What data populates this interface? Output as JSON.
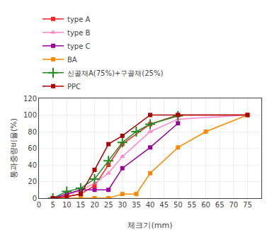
{
  "chart_data": {
    "type": "line",
    "xlabel": "체크기(mm)",
    "ylabel": "통과중량비율(%)",
    "xlim": [
      0,
      80
    ],
    "ylim": [
      0,
      120
    ],
    "xticks": [
      0,
      5,
      10,
      15,
      20,
      25,
      30,
      35,
      40,
      45,
      50,
      55,
      60,
      65,
      70,
      75
    ],
    "yticks": [
      0,
      20,
      40,
      60,
      80,
      100,
      120
    ],
    "grid": true,
    "legend": "upper left",
    "series": [
      {
        "name": "type A",
        "x": [
          5,
          10,
          15,
          20,
          25,
          30,
          40,
          50,
          75
        ],
        "values": [
          0,
          2,
          5,
          15,
          40,
          65,
          89,
          100,
          100
        ],
        "color": "#FF2222",
        "marker": "square",
        "line_style": "solid"
      },
      {
        "name": "type B",
        "x": [
          5,
          10,
          15,
          20,
          25,
          30,
          40,
          50,
          75
        ],
        "values": [
          0,
          4,
          9,
          18,
          30,
          50,
          80,
          95,
          100
        ],
        "color": "#FF88CC",
        "marker": "triangle",
        "line_style": "solid"
      },
      {
        "name": "type C",
        "x": [
          5,
          10,
          15,
          20,
          25,
          30,
          40,
          50
        ],
        "values": [
          0,
          5,
          10,
          10,
          10,
          36,
          61,
          90
        ],
        "color": "#990099",
        "marker": "square",
        "line_style": "solid"
      },
      {
        "name": "BA",
        "x": [
          5,
          10,
          15,
          20,
          25,
          30,
          35,
          40,
          50,
          60,
          75
        ],
        "values": [
          0,
          0,
          0,
          0,
          0,
          5,
          5,
          30,
          61,
          80,
          100
        ],
        "color": "#FF8800",
        "marker": "square",
        "line_style": "solid"
      },
      {
        "name": "신골재A(75%)+구골재(25%)",
        "x": [
          5,
          10,
          15,
          20,
          25,
          30,
          35,
          40,
          50
        ],
        "values": [
          0,
          8,
          12,
          23,
          45,
          67,
          80,
          89,
          99
        ],
        "color": "#228B22",
        "marker": "plus",
        "line_style": "solid"
      },
      {
        "name": "PPC",
        "x": [
          5,
          10,
          15,
          20,
          25,
          30,
          40,
          50,
          75
        ],
        "values": [
          0,
          2,
          5,
          34,
          65,
          75,
          100,
          100,
          100
        ],
        "color": "#AA0000",
        "marker": "square",
        "line_style": "solid"
      }
    ]
  }
}
